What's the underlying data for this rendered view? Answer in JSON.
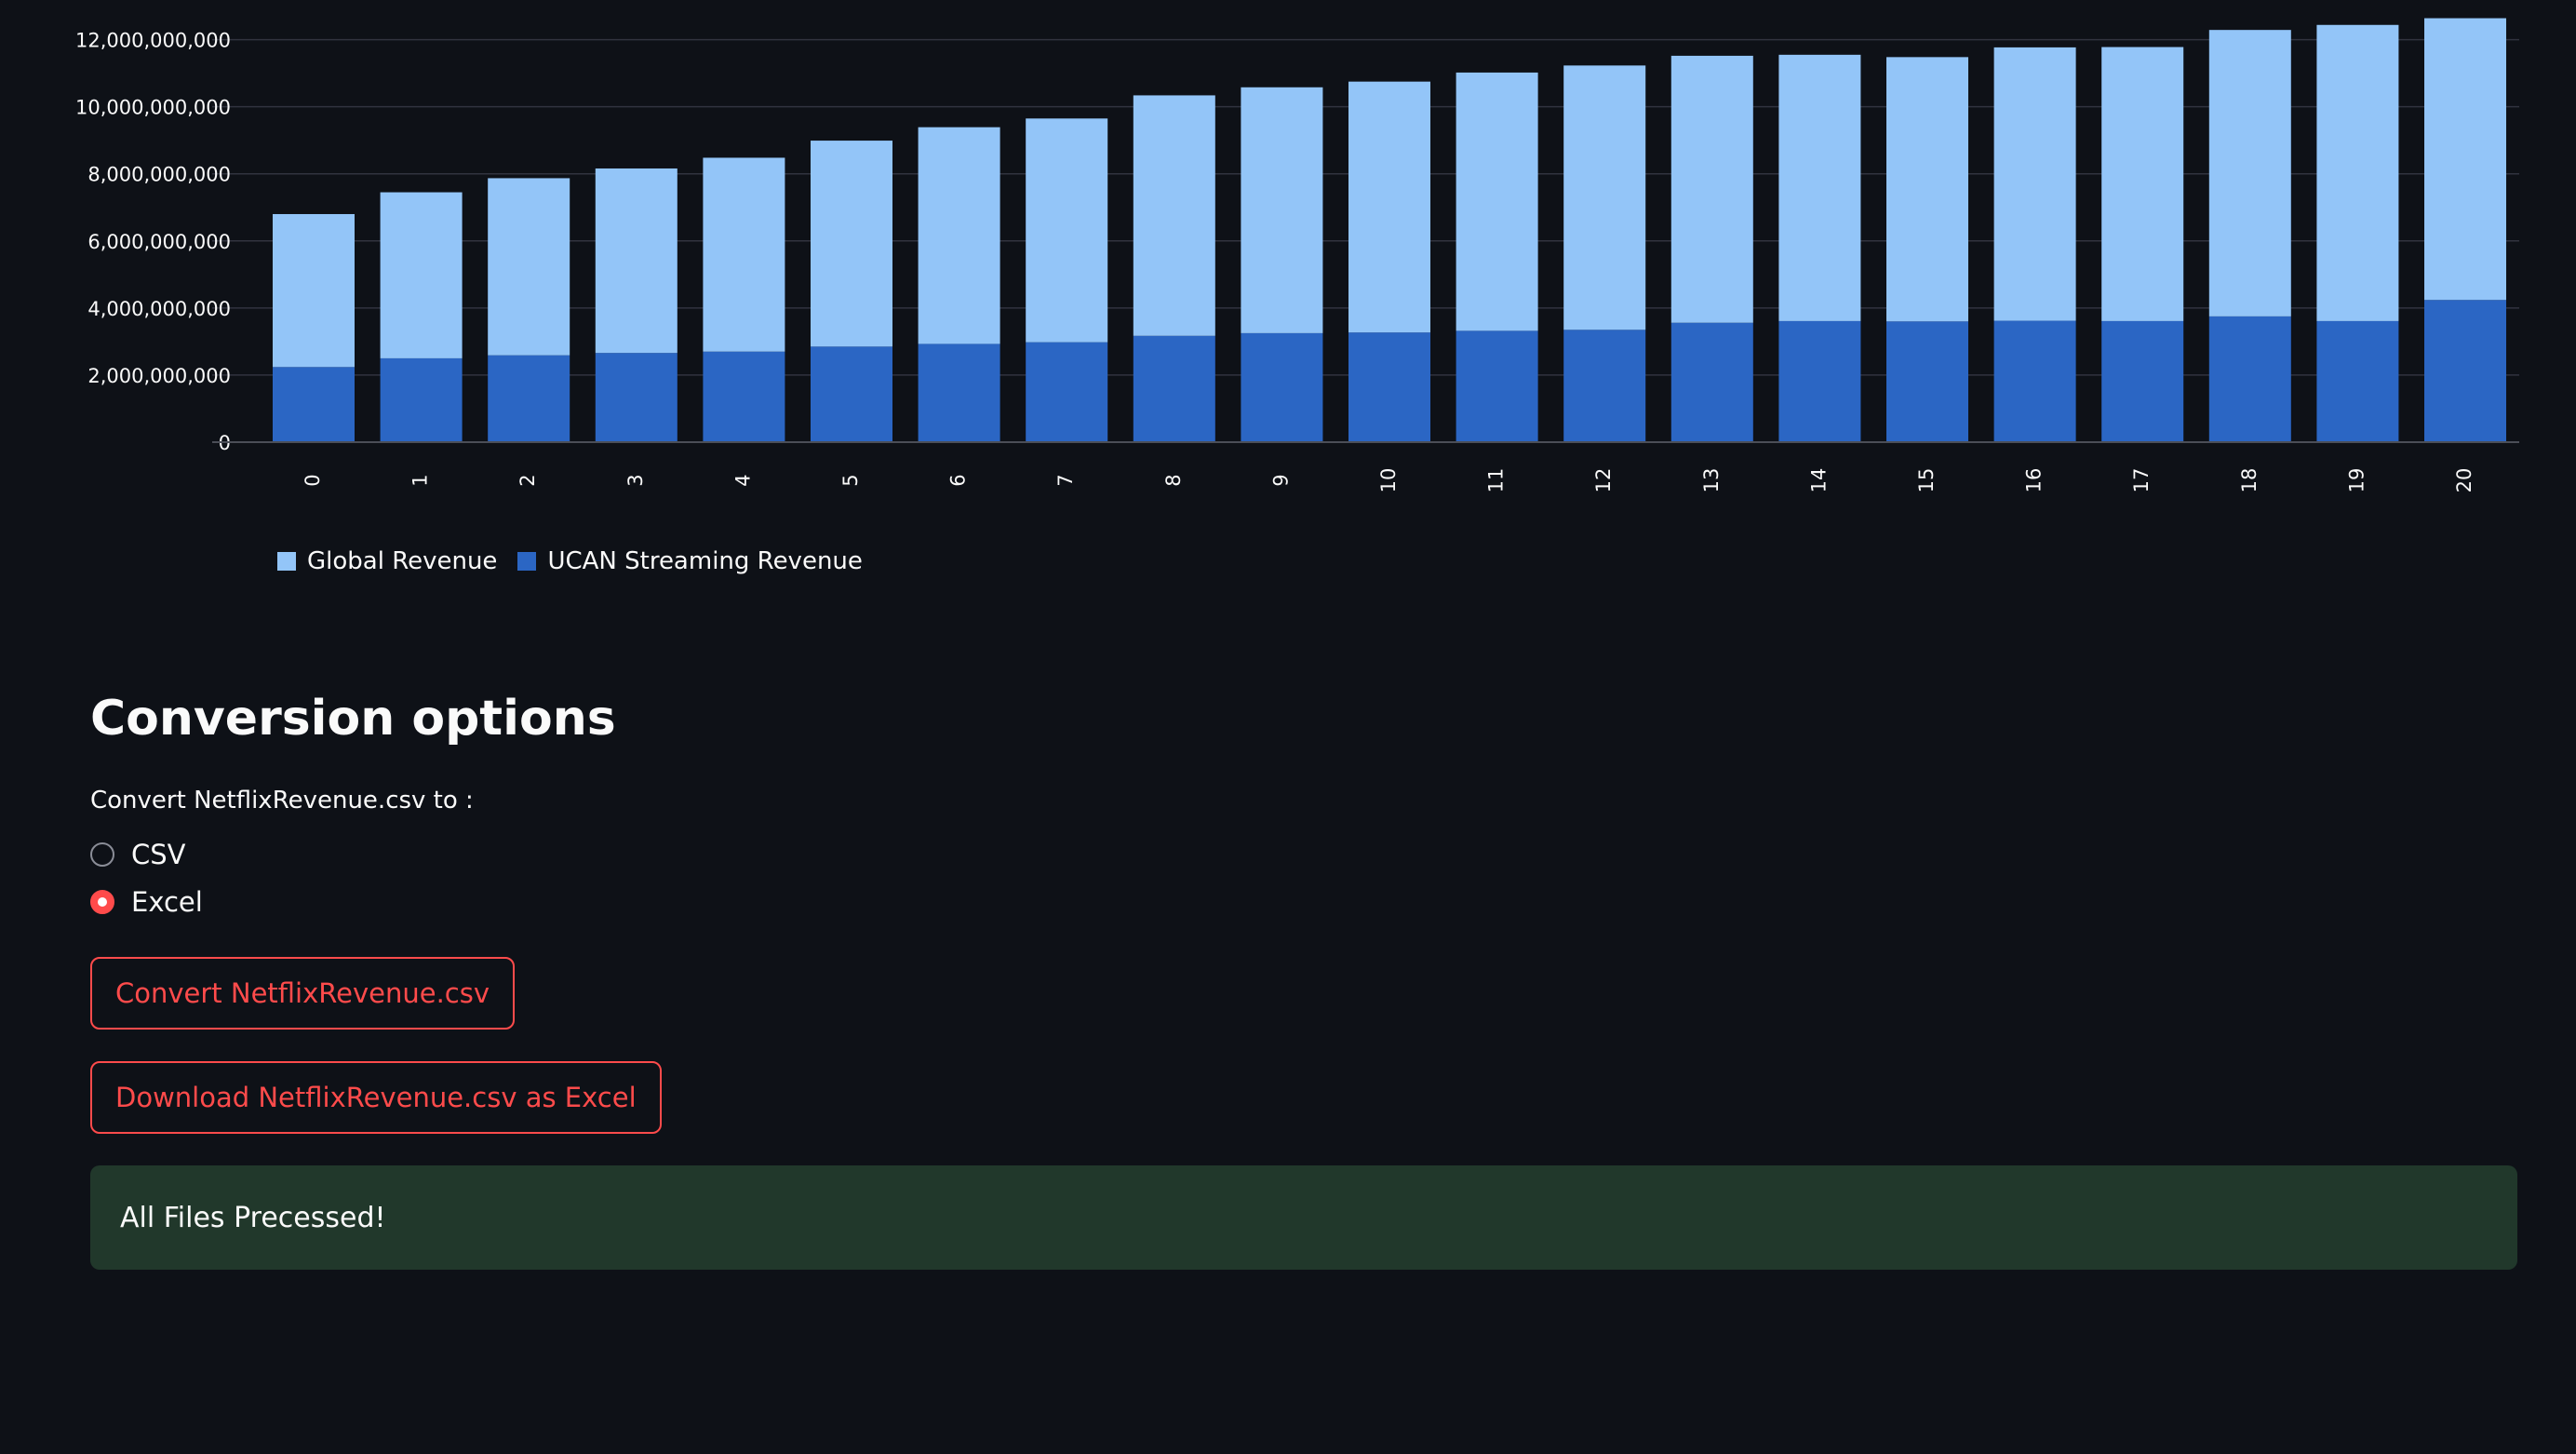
{
  "chart_data": {
    "type": "bar",
    "stacked": true,
    "categories": [
      "0",
      "1",
      "2",
      "3",
      "4",
      "5",
      "6",
      "7",
      "8",
      "9",
      "10",
      "11",
      "12",
      "13",
      "14",
      "15",
      "16",
      "17",
      "18",
      "19",
      "20"
    ],
    "series": [
      {
        "name": "UCAN Streaming Revenue",
        "color": "#2b66c4",
        "values": [
          2240000000,
          2500000000,
          2590000000,
          2660000000,
          2700000000,
          2850000000,
          2930000000,
          2980000000,
          3170000000,
          3250000000,
          3270000000,
          3320000000,
          3350000000,
          3560000000,
          3610000000,
          3600000000,
          3620000000,
          3610000000,
          3750000000,
          3610000000,
          4240000000
        ]
      },
      {
        "name": "Global Revenue",
        "color": "#93c5f8",
        "values": [
          4560000000,
          4950000000,
          5280000000,
          5500000000,
          5780000000,
          6140000000,
          6460000000,
          6670000000,
          7170000000,
          7330000000,
          7480000000,
          7700000000,
          7880000000,
          7960000000,
          7940000000,
          7880000000,
          8150000000,
          8170000000,
          8540000000,
          8830000000,
          8400000000
        ]
      }
    ],
    "ylim": [
      0,
      12600000000
    ],
    "yticks": [
      0,
      2000000000,
      4000000000,
      6000000000,
      8000000000,
      10000000000,
      12000000000
    ],
    "ytick_labels": [
      "0",
      "2,000,000,000",
      "4,000,000,000",
      "6,000,000,000",
      "8,000,000,000",
      "10,000,000,000",
      "12,000,000,000"
    ],
    "grid": true,
    "legend_position": "bottom-left",
    "gridline_color": "#31333f",
    "axis_color": "#4b4e57"
  },
  "legend": {
    "items": [
      {
        "label": "Global Revenue",
        "color": "#93c5f8"
      },
      {
        "label": "UCAN Streaming Revenue",
        "color": "#2b66c4"
      }
    ]
  },
  "conversion": {
    "title": "Conversion options",
    "radio_label": "Convert NetflixRevenue.csv to :",
    "options": [
      {
        "label": "CSV",
        "selected": false
      },
      {
        "label": "Excel",
        "selected": true
      }
    ],
    "convert_button": "Convert NetflixRevenue.csv",
    "download_button": "Download NetflixRevenue.csv as Excel",
    "success_message": "All Files Precessed!"
  },
  "colors": {
    "background": "#0e1117",
    "accent": "#ff4b4b",
    "success_bg": "#21382b"
  }
}
